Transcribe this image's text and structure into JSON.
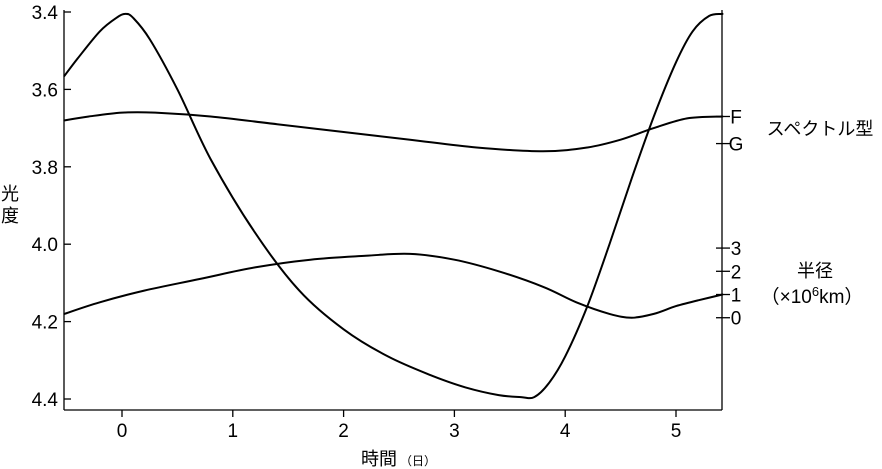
{
  "chart_data": {
    "type": "line",
    "title": "",
    "xlabel": "時間",
    "xlabel_unit": "（日）",
    "ylabel": "光度",
    "xlim": [
      -0.55,
      5.45
    ],
    "ylim": [
      3.4,
      4.43
    ],
    "x_ticks": [
      0,
      1,
      2,
      3,
      4,
      5
    ],
    "x_tick_labels": [
      "0",
      "1",
      "2",
      "3",
      "4",
      "5"
    ],
    "y_ticks": [
      3.4,
      3.6,
      3.8,
      4.0,
      4.2,
      4.4
    ],
    "y_tick_labels": [
      "3.4",
      "3.6",
      "3.8",
      "4.0",
      "4.2",
      "4.4"
    ],
    "right_axes": [
      {
        "name": "spectral-type",
        "label": "スペクトル型",
        "ticks": [
          {
            "label": "F",
            "luminosity_equiv": 3.67
          },
          {
            "label": "G",
            "luminosity_equiv": 3.74
          }
        ]
      },
      {
        "name": "radius",
        "label": "半径",
        "unit_label_prefix": "（×10",
        "unit_label_exp": "6",
        "unit_label_suffix": "km）",
        "ticks": [
          {
            "label": "3",
            "luminosity_equiv": 4.01
          },
          {
            "label": "2",
            "luminosity_equiv": 4.07
          },
          {
            "label": "1",
            "luminosity_equiv": 4.13
          },
          {
            "label": "0",
            "luminosity_equiv": 4.19
          }
        ]
      }
    ],
    "series": [
      {
        "id": "luminosity",
        "x": [
          -0.52,
          -0.4,
          -0.2,
          -0.05,
          0.03,
          0.1,
          0.25,
          0.5,
          0.8,
          1.2,
          1.6,
          2.0,
          2.4,
          2.8,
          3.1,
          3.4,
          3.6,
          3.72,
          3.85,
          4.0,
          4.2,
          4.4,
          4.6,
          4.8,
          5.0,
          5.15,
          5.3,
          5.42
        ],
        "y": [
          3.565,
          3.52,
          3.45,
          3.415,
          3.405,
          3.415,
          3.47,
          3.6,
          3.78,
          3.97,
          4.12,
          4.22,
          4.29,
          4.34,
          4.37,
          4.39,
          4.395,
          4.395,
          4.36,
          4.29,
          4.16,
          4.0,
          3.83,
          3.67,
          3.53,
          3.45,
          3.41,
          3.405
        ]
      },
      {
        "id": "spectral-type",
        "x": [
          -0.52,
          -0.3,
          0.0,
          0.3,
          0.8,
          1.4,
          2.0,
          2.6,
          3.2,
          3.8,
          4.2,
          4.5,
          4.8,
          5.1,
          5.42
        ],
        "y": [
          3.68,
          3.67,
          3.66,
          3.66,
          3.67,
          3.69,
          3.71,
          3.73,
          3.75,
          3.76,
          3.75,
          3.73,
          3.7,
          3.675,
          3.67
        ]
      },
      {
        "id": "radius",
        "x": [
          -0.52,
          -0.2,
          0.2,
          0.7,
          1.2,
          1.7,
          2.2,
          2.6,
          3.0,
          3.4,
          3.8,
          4.1,
          4.4,
          4.6,
          4.8,
          5.0,
          5.2,
          5.42
        ],
        "y": [
          4.18,
          4.15,
          4.12,
          4.09,
          4.06,
          4.04,
          4.03,
          4.025,
          4.04,
          4.07,
          4.11,
          4.15,
          4.18,
          4.19,
          4.18,
          4.16,
          4.145,
          4.13
        ]
      }
    ]
  }
}
